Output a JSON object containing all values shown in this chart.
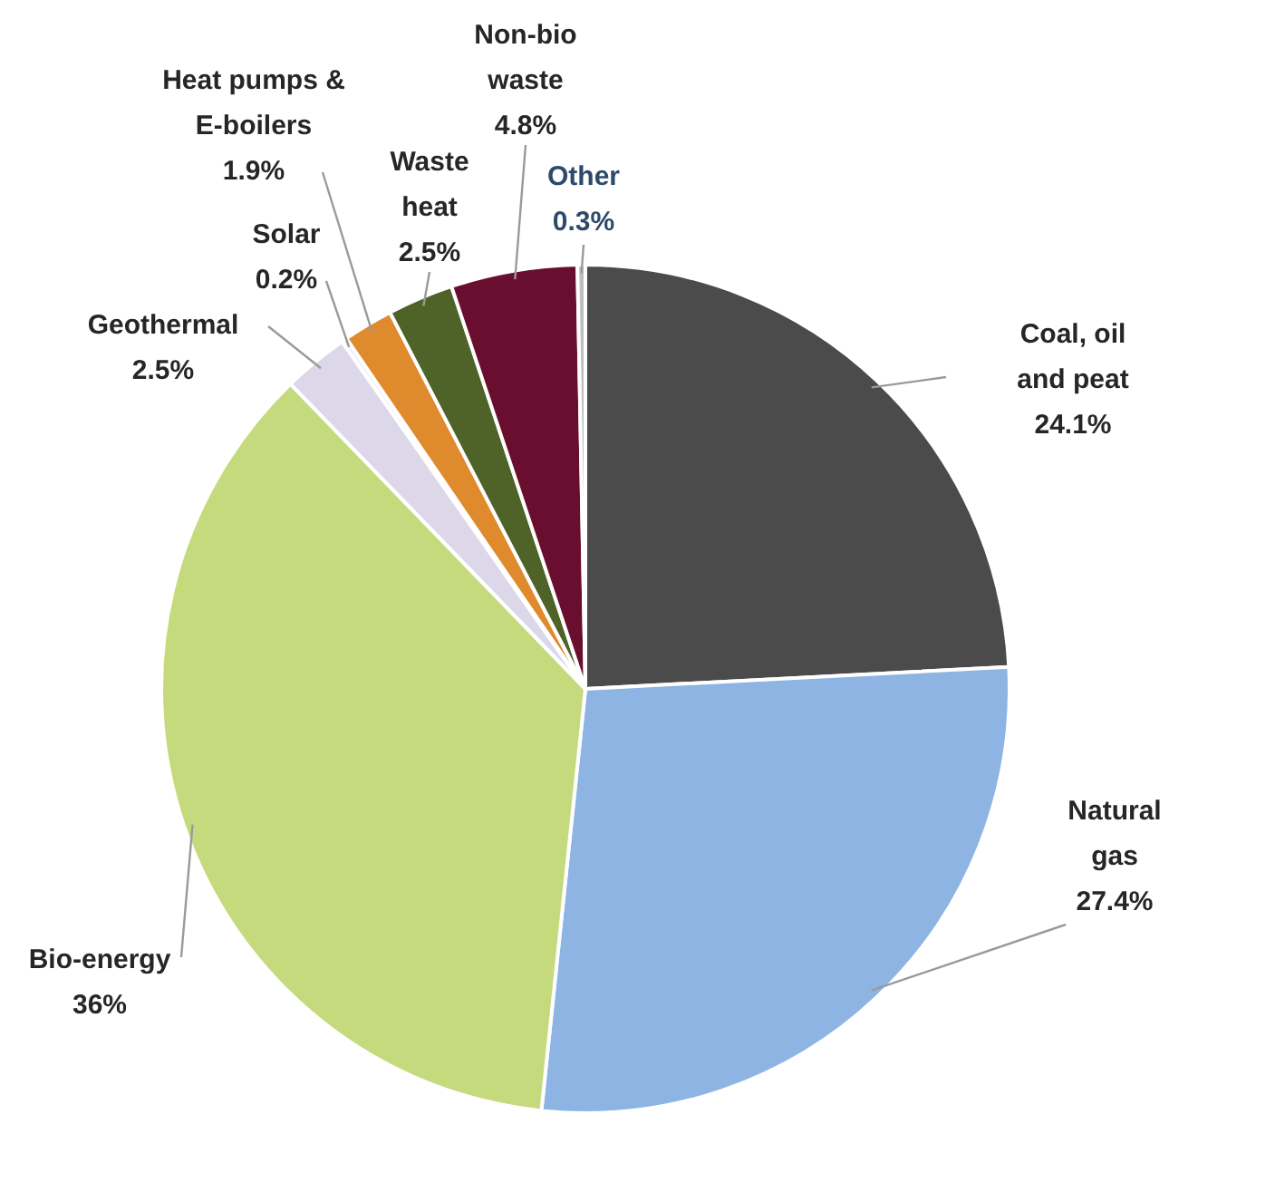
{
  "chart_data": {
    "type": "pie",
    "categories": [
      "Coal, oil and peat",
      "Natural gas",
      "Bio-energy",
      "Geothermal",
      "Solar",
      "Heat pumps & E-boilers",
      "Waste heat",
      "Non-bio waste",
      "Other"
    ],
    "values": [
      24.1,
      27.4,
      36,
      2.5,
      0.2,
      1.9,
      2.5,
      4.8,
      0.3
    ],
    "value_labels": [
      "24.1%",
      "27.4%",
      "36%",
      "2.5%",
      "0.2%",
      "1.9%",
      "2.5%",
      "4.8%",
      "0.3%"
    ],
    "colors": [
      "#4b4b4b",
      "#8db4e2",
      "#c5da7c",
      "#dcd8ea",
      "#ececec",
      "#e08a2e",
      "#4f6228",
      "#6a0e2f",
      "#bfbfbf"
    ]
  }
}
